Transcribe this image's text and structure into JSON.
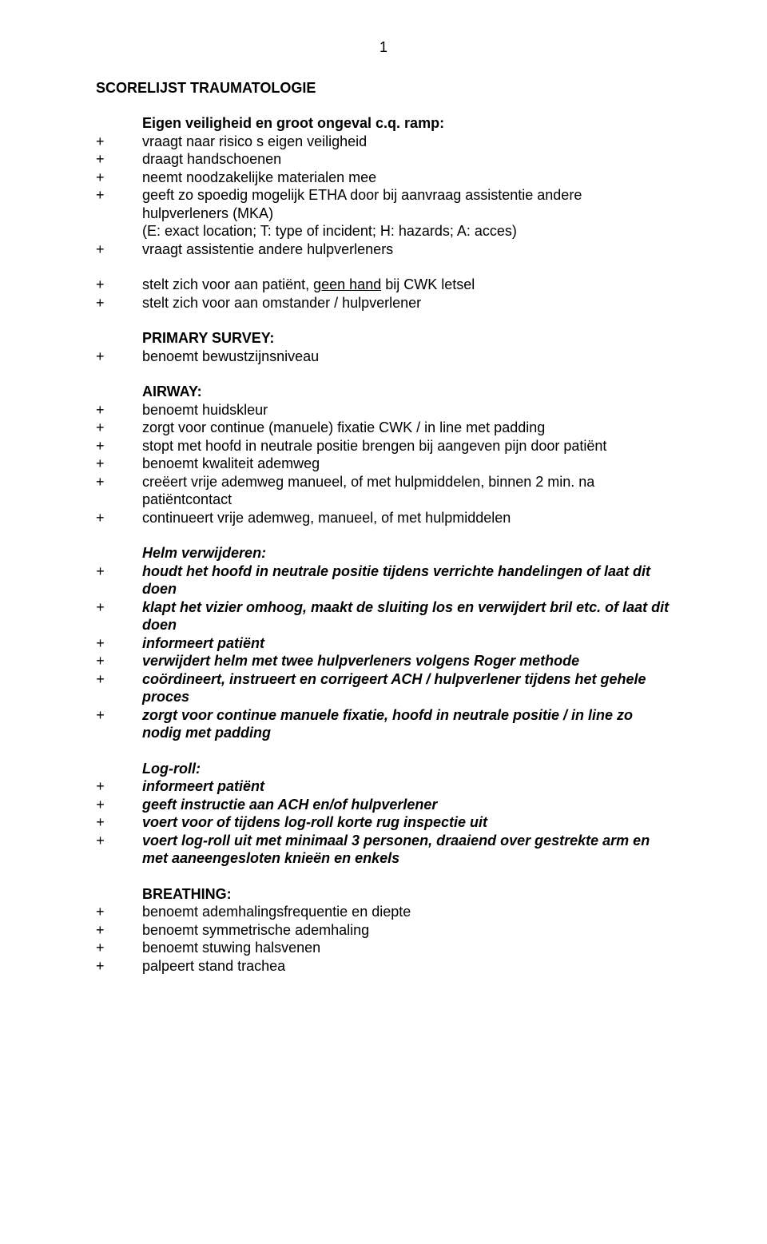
{
  "page_number": "1",
  "doc_title": "SCORELIJST TRAUMATOLOGIE",
  "text_color": "#000000",
  "background_color": "#ffffff",
  "font_family": "Arial",
  "font_size_pt": 12,
  "sections": {
    "opening": {
      "heading": "Eigen veiligheid en groot ongeval c.q. ramp:",
      "items": [
        "vraagt naar risico s eigen veiligheid",
        "draagt handschoenen",
        "neemt noodzakelijke materialen mee",
        "geeft zo spoedig mogelijk ETHA door bij aanvraag assistentie andere hulpverleners (MKA)",
        "(E: exact location; T: type of incident; H: hazards; A: acces)",
        "vraagt assistentie andere hulpverleners"
      ]
    },
    "intro2": {
      "pre": "stelt zich voor aan patiënt, ",
      "u": "geen hand",
      "post": " bij CWK letsel",
      "i1": "stelt zich voor aan omstander / hulpverlener"
    },
    "primary": {
      "heading": "PRIMARY SURVEY:",
      "items": [
        "benoemt bewustzijnsniveau"
      ]
    },
    "airway": {
      "heading": "AIRWAY:",
      "items": [
        "benoemt huidskleur",
        "zorgt voor continue (manuele) fixatie CWK / in line met padding",
        "stopt met hoofd in neutrale positie brengen bij aangeven pijn door patiënt",
        "benoemt kwaliteit ademweg",
        "creëert vrije ademweg manueel, of met hulpmiddelen, binnen 2 min. na patiëntcontact",
        "continueert vrije ademweg, manueel, of met hulpmiddelen"
      ]
    },
    "helm": {
      "heading": "Helm verwijderen:",
      "items": [
        "houdt het hoofd in neutrale positie tijdens verrichte handelingen of laat dit doen",
        "klapt het vizier omhoog, maakt de sluiting los en verwijdert bril etc. of laat dit doen",
        "informeert patiënt",
        "verwijdert helm met twee hulpverleners volgens Roger methode",
        "coördineert, instrueert en corrigeert ACH / hulpverlener tijdens het gehele proces",
        "zorgt voor continue manuele fixatie, hoofd in neutrale positie / in line zo nodig met padding"
      ]
    },
    "logroll": {
      "heading": "Log-roll:",
      "items": [
        "informeert patiënt",
        "geeft instructie aan ACH en/of hulpverlener",
        "voert voor of tijdens log-roll korte rug inspectie uit",
        "voert log-roll uit met minimaal 3 personen, draaiend over gestrekte arm en met aaneengesloten knieën en enkels"
      ]
    },
    "breathing": {
      "heading": "BREATHING:",
      "items": [
        "benoemt ademhalingsfrequentie en diepte",
        "benoemt symmetrische ademhaling",
        "benoemt stuwing halsvenen",
        "palpeert stand trachea"
      ]
    }
  }
}
